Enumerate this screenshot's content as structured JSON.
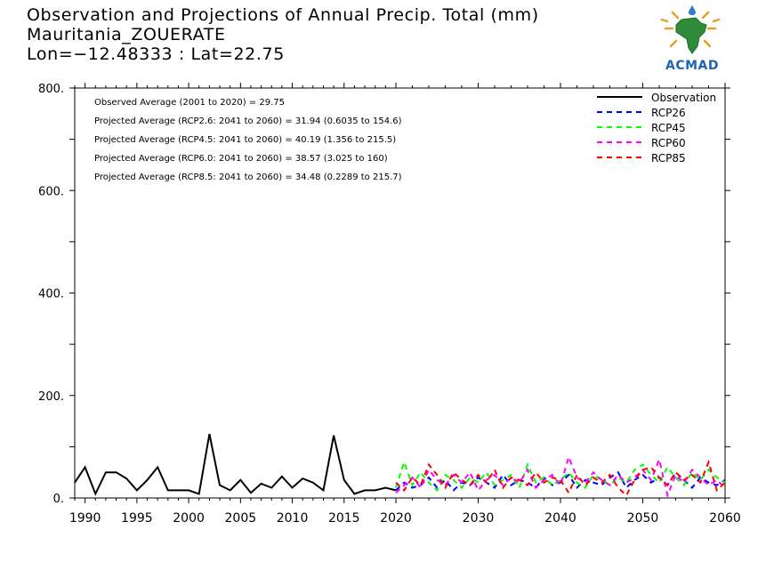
{
  "header": {
    "title_line1": "Observation and Projections of Annual Precip. Total (mm)",
    "title_line2": "Mauritania_ZOUERATE",
    "title_line3": "Lon=−12.48333 : Lat=22.75"
  },
  "logo": {
    "text": "ACMAD",
    "icon": "africa-map-logo-icon"
  },
  "chart_data": {
    "type": "line",
    "title": "Observation and Projections of Annual Precip. Total (mm)",
    "xlabel": "",
    "ylabel": "",
    "xlim": [
      1989,
      2060
    ],
    "ylim": [
      0,
      800
    ],
    "grid": false,
    "legend_position": "top-right",
    "x_ticks": [
      1990,
      1995,
      2000,
      2005,
      2010,
      2015,
      2020,
      2030,
      2040,
      2050,
      2060
    ],
    "y_ticks": [
      0,
      200,
      400,
      600,
      800
    ],
    "y_tick_labels": [
      "0.",
      "200.",
      "400.",
      "600.",
      "800."
    ],
    "annotations": [
      "Observed Average (2001 to 2020) = 29.75",
      "Projected Average (RCP2.6: 2041 to 2060) = 31.94 (0.6035 to 154.6)",
      "Projected Average (RCP4.5: 2041 to 2060) = 40.19 (1.356 to 215.5)",
      "Projected Average (RCP6.0: 2041 to 2060) = 38.57 (3.025 to 160)",
      "Projected Average (RCP8.5: 2041 to 2060) = 34.48 (0.2289 to 215.7)"
    ],
    "series": [
      {
        "name": "Observation",
        "color": "#000000",
        "dash": "solid",
        "x": [
          1989,
          1990,
          1991,
          1992,
          1993,
          1994,
          1995,
          1996,
          1997,
          1998,
          1999,
          2000,
          2001,
          2002,
          2003,
          2004,
          2005,
          2006,
          2007,
          2008,
          2009,
          2010,
          2011,
          2012,
          2013,
          2014,
          2015,
          2016,
          2017,
          2018,
          2019,
          2020
        ],
        "y": [
          30,
          60,
          8,
          50,
          50,
          38,
          15,
          35,
          60,
          15,
          15,
          15,
          8,
          125,
          25,
          15,
          35,
          10,
          28,
          20,
          42,
          20,
          38,
          30,
          15,
          122,
          35,
          8,
          15,
          15,
          20,
          15
        ]
      },
      {
        "name": "RCP26",
        "color": "#0000ff",
        "dash": "dashed",
        "x": [
          2020,
          2021,
          2022,
          2023,
          2024,
          2025,
          2026,
          2027,
          2028,
          2029,
          2030,
          2031,
          2032,
          2033,
          2034,
          2035,
          2036,
          2037,
          2038,
          2039,
          2040,
          2041,
          2042,
          2043,
          2044,
          2045,
          2046,
          2047,
          2048,
          2049,
          2050,
          2051,
          2052,
          2053,
          2054,
          2055,
          2056,
          2057,
          2058,
          2059,
          2060
        ],
        "y": [
          15,
          30,
          20,
          25,
          40,
          20,
          35,
          15,
          30,
          25,
          40,
          30,
          20,
          45,
          25,
          35,
          30,
          20,
          40,
          25,
          30,
          45,
          20,
          35,
          30,
          25,
          40,
          50,
          20,
          35,
          45,
          30,
          40,
          25,
          50,
          35,
          20,
          40,
          30,
          25,
          35
        ]
      },
      {
        "name": "RCP45",
        "color": "#00ff00",
        "dash": "dashed",
        "x": [
          2020,
          2021,
          2022,
          2023,
          2024,
          2025,
          2026,
          2027,
          2028,
          2029,
          2030,
          2031,
          2032,
          2033,
          2034,
          2035,
          2036,
          2037,
          2038,
          2039,
          2040,
          2041,
          2042,
          2043,
          2044,
          2045,
          2046,
          2047,
          2048,
          2049,
          2050,
          2051,
          2052,
          2053,
          2054,
          2055,
          2056,
          2057,
          2058,
          2059,
          2060
        ],
        "y": [
          20,
          70,
          25,
          50,
          30,
          15,
          45,
          35,
          20,
          40,
          30,
          50,
          25,
          35,
          45,
          20,
          65,
          30,
          40,
          25,
          35,
          50,
          30,
          20,
          45,
          35,
          25,
          40,
          30,
          55,
          65,
          45,
          30,
          60,
          40,
          25,
          50,
          35,
          55,
          40,
          30
        ]
      },
      {
        "name": "RCP60",
        "color": "#ff00ff",
        "dash": "dashed",
        "x": [
          2020,
          2021,
          2022,
          2023,
          2024,
          2025,
          2026,
          2027,
          2028,
          2029,
          2030,
          2031,
          2032,
          2033,
          2034,
          2035,
          2036,
          2037,
          2038,
          2039,
          2040,
          2041,
          2042,
          2043,
          2044,
          2045,
          2046,
          2047,
          2048,
          2049,
          2050,
          2051,
          2052,
          2053,
          2054,
          2055,
          2056,
          2057,
          2058,
          2059,
          2060
        ],
        "y": [
          10,
          25,
          40,
          20,
          55,
          35,
          25,
          45,
          30,
          50,
          15,
          35,
          45,
          25,
          40,
          30,
          55,
          20,
          35,
          45,
          25,
          80,
          40,
          30,
          50,
          35,
          25,
          45,
          30,
          40,
          55,
          35,
          75,
          5,
          45,
          30,
          55,
          40,
          25,
          35,
          20
        ]
      },
      {
        "name": "RCP85",
        "color": "#ff0000",
        "dash": "dashed",
        "x": [
          2020,
          2021,
          2022,
          2023,
          2024,
          2025,
          2026,
          2027,
          2028,
          2029,
          2030,
          2031,
          2032,
          2033,
          2034,
          2035,
          2036,
          2037,
          2038,
          2039,
          2040,
          2041,
          2042,
          2043,
          2044,
          2045,
          2046,
          2047,
          2048,
          2049,
          2050,
          2051,
          2052,
          2053,
          2054,
          2055,
          2056,
          2057,
          2058,
          2059,
          2060
        ],
        "y": [
          30,
          15,
          40,
          25,
          65,
          45,
          20,
          50,
          35,
          25,
          45,
          30,
          55,
          20,
          40,
          35,
          25,
          50,
          30,
          40,
          35,
          10,
          45,
          25,
          40,
          30,
          45,
          20,
          5,
          35,
          55,
          60,
          40,
          25,
          50,
          35,
          45,
          30,
          70,
          15,
          30
        ]
      }
    ]
  }
}
